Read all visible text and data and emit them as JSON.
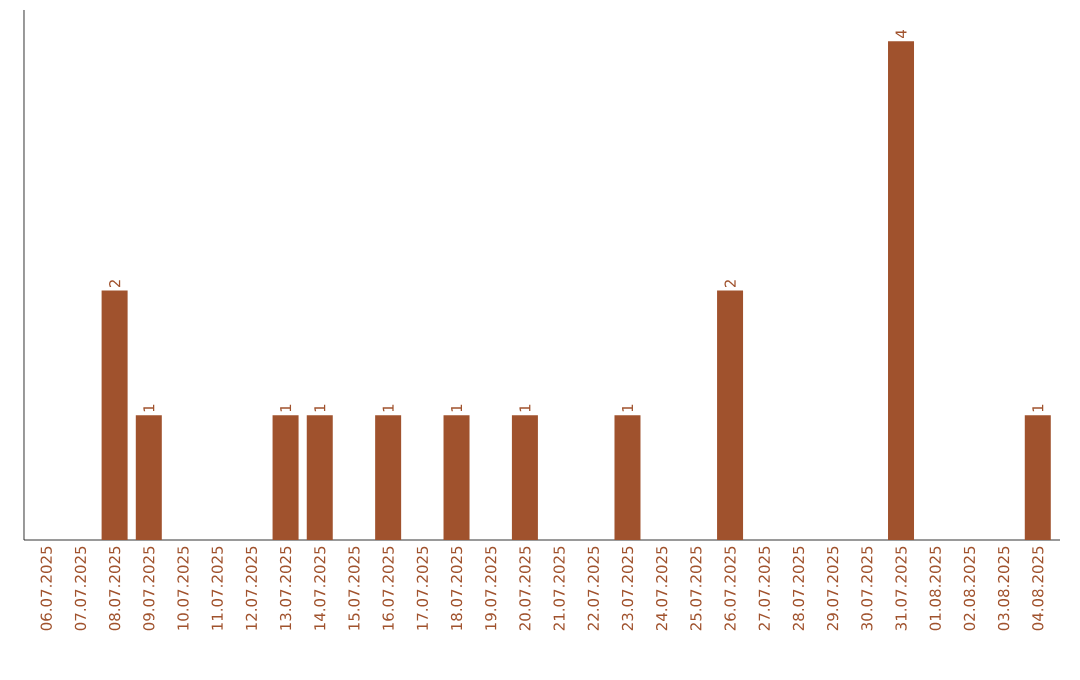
{
  "chart_data": {
    "type": "bar",
    "categories": [
      "06.07.2025",
      "07.07.2025",
      "08.07.2025",
      "09.07.2025",
      "10.07.2025",
      "11.07.2025",
      "12.07.2025",
      "13.07.2025",
      "14.07.2025",
      "15.07.2025",
      "16.07.2025",
      "17.07.2025",
      "18.07.2025",
      "19.07.2025",
      "20.07.2025",
      "21.07.2025",
      "22.07.2025",
      "23.07.2025",
      "24.07.2025",
      "25.07.2025",
      "26.07.2025",
      "27.07.2025",
      "28.07.2025",
      "29.07.2025",
      "30.07.2025",
      "31.07.2025",
      "01.08.2025",
      "02.08.2025",
      "03.08.2025",
      "04.08.2025"
    ],
    "values": [
      0,
      0,
      2,
      1,
      0,
      0,
      0,
      1,
      1,
      0,
      1,
      0,
      1,
      0,
      1,
      0,
      0,
      1,
      0,
      0,
      2,
      0,
      0,
      0,
      0,
      4,
      0,
      0,
      0,
      1
    ],
    "value_labels": [
      null,
      null,
      "2",
      "1",
      null,
      null,
      null,
      "1",
      "1",
      null,
      "1",
      null,
      "1",
      null,
      "1",
      null,
      null,
      "1",
      null,
      null,
      "2",
      null,
      null,
      null,
      null,
      "4",
      null,
      null,
      null,
      "1"
    ],
    "color": "#a0522d",
    "ylim": [
      0,
      4.25
    ],
    "tick_labels": "x",
    "grid": false
  }
}
